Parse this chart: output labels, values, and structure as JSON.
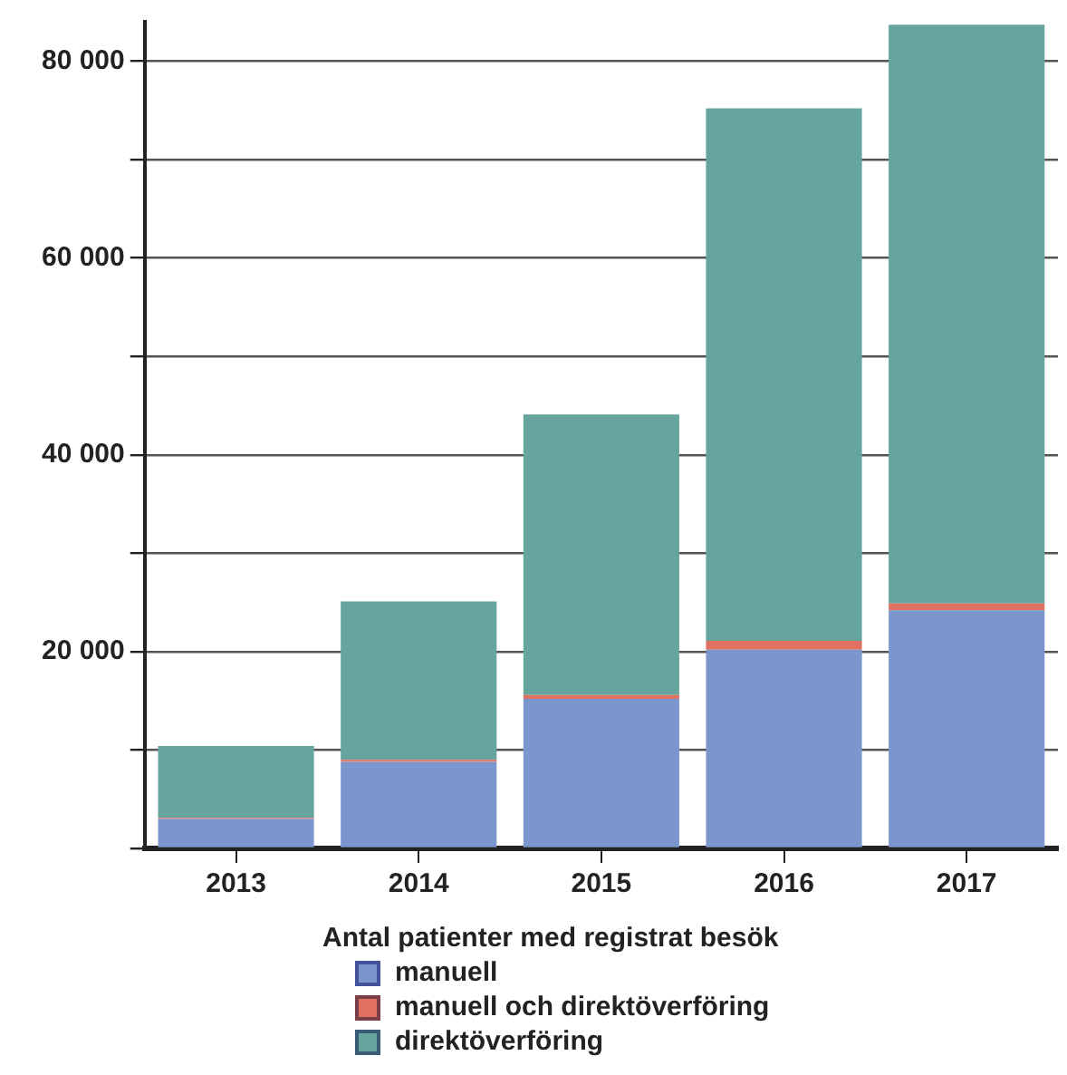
{
  "chart_data": {
    "type": "bar",
    "stacked": true,
    "legend_title": "Antal patienter med registrat besök",
    "legend": "bottom",
    "grid": "y",
    "categories": [
      "2013",
      "2014",
      "2015",
      "2016",
      "2017"
    ],
    "series": [
      {
        "name": "manuell",
        "color": "#7b96cc",
        "values": [
          3000,
          8800,
          15200,
          20200,
          24200
        ]
      },
      {
        "name": "manuell och direktöverföring",
        "color": "#e07060",
        "values": [
          100,
          200,
          400,
          900,
          700
        ]
      },
      {
        "name": "direktöverföring",
        "color": "#66a59e",
        "values": [
          7300,
          16100,
          28500,
          54100,
          58800
        ]
      }
    ],
    "ylim": [
      0,
      84000
    ],
    "yticks": [
      {
        "value": 0,
        "label": null
      },
      {
        "value": 10000,
        "label": null
      },
      {
        "value": 20000,
        "label": "20 000"
      },
      {
        "value": 30000,
        "label": null
      },
      {
        "value": 40000,
        "label": "40 000"
      },
      {
        "value": 50000,
        "label": null
      },
      {
        "value": 60000,
        "label": "60 000"
      },
      {
        "value": 70000,
        "label": null
      },
      {
        "value": 80000,
        "label": "80 000"
      }
    ]
  }
}
